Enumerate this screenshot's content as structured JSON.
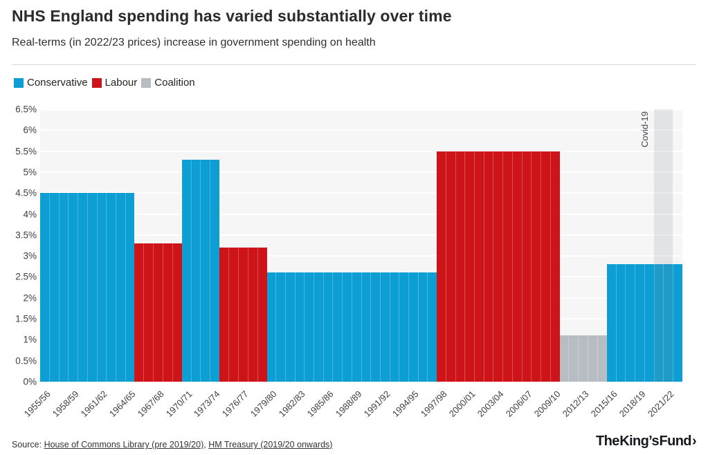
{
  "header": {
    "title": "NHS England spending has varied substantially over time",
    "subtitle": "Real-terms (in 2022/23 prices) increase in government spending on health"
  },
  "legend": [
    {
      "label": "Conservative"
    },
    {
      "label": "Labour"
    },
    {
      "label": "Coalition"
    }
  ],
  "chart_data": {
    "type": "bar",
    "title": "NHS England spending has varied substantially over time",
    "subtitle": "Real-terms (in 2022/23 prices) increase in government spending on health",
    "unit": "percent",
    "ylim": [
      0,
      6.5
    ],
    "ytick_step": 0.5,
    "y_tick_labels": [
      "0%",
      "0.5%",
      "1%",
      "1.5%",
      "2%",
      "2.5%",
      "3%",
      "3.5%",
      "4%",
      "4.5%",
      "5%",
      "5.5%",
      "6%",
      "6.5%"
    ],
    "x_tick_labels": [
      "1955/56",
      "1958/59",
      "1961/62",
      "1964/65",
      "1967/68",
      "1970/71",
      "1973/74",
      "1976/77",
      "1979/80",
      "1982/83",
      "1985/86",
      "1988/89",
      "1991/92",
      "1994/95",
      "1997/98",
      "2000/01",
      "2003/04",
      "2006/07",
      "2009/10",
      "2012/13",
      "2015/16",
      "2018/19",
      "2021/22"
    ],
    "x_tick_every": 3,
    "first_year": "1955/56",
    "last_year": "2022/23",
    "n_years": 68,
    "grid": true,
    "legend_position": "top-left",
    "plot_background": "#f6f6f6",
    "gridline_color": "#ffffff",
    "colors": {
      "Conservative": "#0d9fd4",
      "Labour": "#cd1419",
      "Coalition": "#b8bdc4"
    },
    "series": [
      {
        "party": "Conservative",
        "years": "1955/56-1964/65",
        "start_index": 0,
        "n_years": 10,
        "value": 4.5
      },
      {
        "party": "Labour",
        "years": "1965/66-1969/70",
        "start_index": 10,
        "n_years": 5,
        "value": 3.3
      },
      {
        "party": "Conservative",
        "years": "1970/71-1973/74",
        "start_index": 15,
        "n_years": 4,
        "value": 5.3
      },
      {
        "party": "Labour",
        "years": "1974/75-1978/79",
        "start_index": 19,
        "n_years": 5,
        "value": 3.2
      },
      {
        "party": "Conservative",
        "years": "1979/80-1996/97",
        "start_index": 24,
        "n_years": 18,
        "value": 2.6
      },
      {
        "party": "Labour",
        "years": "1997/98-2009/10",
        "start_index": 42,
        "n_years": 13,
        "value": 5.5
      },
      {
        "party": "Coalition",
        "years": "2010/11-2014/15",
        "start_index": 55,
        "n_years": 5,
        "value": 1.1
      },
      {
        "party": "Conservative",
        "years": "2015/16-2022/23",
        "start_index": 60,
        "n_years": 8,
        "value": 2.8
      }
    ],
    "annotation": {
      "label": "Covid-19",
      "years": "2020/21-2021/22",
      "start_index": 65,
      "n_years": 2,
      "band_color": "rgba(128,134,140,0.17)"
    }
  },
  "footer": {
    "source_prefix": "Source: ",
    "source_link_1": "House of Commons Library (pre 2019/20)",
    "source_separator": ", ",
    "source_link_2": "HM Treasury (2019/20 onwards)",
    "logo_text": "The King’s Fund",
    "logo_chevron": "›"
  }
}
